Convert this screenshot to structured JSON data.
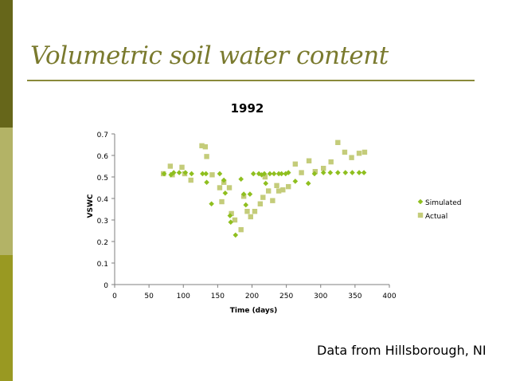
{
  "slide": {
    "title": "Volumetric soil water content",
    "footer": "Data from Hillsborough, NI"
  },
  "colors": {
    "bar_top": "#66661a",
    "bar_mid": "#b3b366",
    "bar_bot": "#999922",
    "title": "#7a7a2e",
    "rule": "#8a8a3a",
    "simulated": "#8fbf1f",
    "actual": "#c4cc7a",
    "axis": "#7f7f7f"
  },
  "chart_data": {
    "type": "scatter",
    "title": "1992",
    "xlabel": "Time (days)",
    "ylabel": "VSWC",
    "xlim": [
      0,
      400
    ],
    "ylim": [
      0,
      0.7
    ],
    "xticks": [
      "0",
      "50",
      "100",
      "150",
      "200",
      "250",
      "300",
      "350",
      "400"
    ],
    "yticks": [
      "0",
      "0.1",
      "0.2",
      "0.3",
      "0.4",
      "0.5",
      "0.6",
      "0.7"
    ],
    "grid": false,
    "legend": "right",
    "series": [
      {
        "name": "Simulated",
        "marker": "diamond",
        "points": [
          [
            72,
            0.515
          ],
          [
            82,
            0.51
          ],
          [
            86,
            0.52
          ],
          [
            94,
            0.52
          ],
          [
            103,
            0.52
          ],
          [
            112,
            0.515
          ],
          [
            128,
            0.515
          ],
          [
            133,
            0.515
          ],
          [
            134,
            0.475
          ],
          [
            141,
            0.375
          ],
          [
            153,
            0.515
          ],
          [
            159,
            0.485
          ],
          [
            161,
            0.425
          ],
          [
            168,
            0.32
          ],
          [
            169,
            0.29
          ],
          [
            176,
            0.23
          ],
          [
            184,
            0.49
          ],
          [
            188,
            0.42
          ],
          [
            191,
            0.37
          ],
          [
            197,
            0.42
          ],
          [
            202,
            0.515
          ],
          [
            210,
            0.515
          ],
          [
            214,
            0.51
          ],
          [
            218,
            0.515
          ],
          [
            220,
            0.47
          ],
          [
            226,
            0.515
          ],
          [
            232,
            0.515
          ],
          [
            239,
            0.515
          ],
          [
            243,
            0.515
          ],
          [
            249,
            0.515
          ],
          [
            253,
            0.52
          ],
          [
            263,
            0.48
          ],
          [
            282,
            0.47
          ],
          [
            291,
            0.515
          ],
          [
            304,
            0.52
          ],
          [
            314,
            0.52
          ],
          [
            325,
            0.52
          ],
          [
            336,
            0.52
          ],
          [
            346,
            0.52
          ],
          [
            356,
            0.52
          ],
          [
            363,
            0.52
          ]
        ]
      },
      {
        "name": "Actual",
        "marker": "square",
        "points": [
          [
            71,
            0.515
          ],
          [
            81,
            0.55
          ],
          [
            84,
            0.51
          ],
          [
            98,
            0.545
          ],
          [
            102,
            0.515
          ],
          [
            111,
            0.485
          ],
          [
            127,
            0.645
          ],
          [
            132,
            0.64
          ],
          [
            134,
            0.595
          ],
          [
            142,
            0.51
          ],
          [
            153,
            0.45
          ],
          [
            156,
            0.385
          ],
          [
            159,
            0.475
          ],
          [
            167,
            0.45
          ],
          [
            170,
            0.33
          ],
          [
            175,
            0.3
          ],
          [
            184,
            0.255
          ],
          [
            188,
            0.41
          ],
          [
            193,
            0.34
          ],
          [
            198,
            0.315
          ],
          [
            204,
            0.34
          ],
          [
            212,
            0.375
          ],
          [
            216,
            0.405
          ],
          [
            219,
            0.5
          ],
          [
            224,
            0.435
          ],
          [
            230,
            0.39
          ],
          [
            236,
            0.46
          ],
          [
            239,
            0.435
          ],
          [
            245,
            0.44
          ],
          [
            253,
            0.455
          ],
          [
            263,
            0.56
          ],
          [
            272,
            0.52
          ],
          [
            283,
            0.575
          ],
          [
            292,
            0.525
          ],
          [
            304,
            0.54
          ],
          [
            315,
            0.57
          ],
          [
            325,
            0.66
          ],
          [
            335,
            0.615
          ],
          [
            345,
            0.59
          ],
          [
            356,
            0.61
          ],
          [
            364,
            0.615
          ]
        ]
      }
    ]
  }
}
